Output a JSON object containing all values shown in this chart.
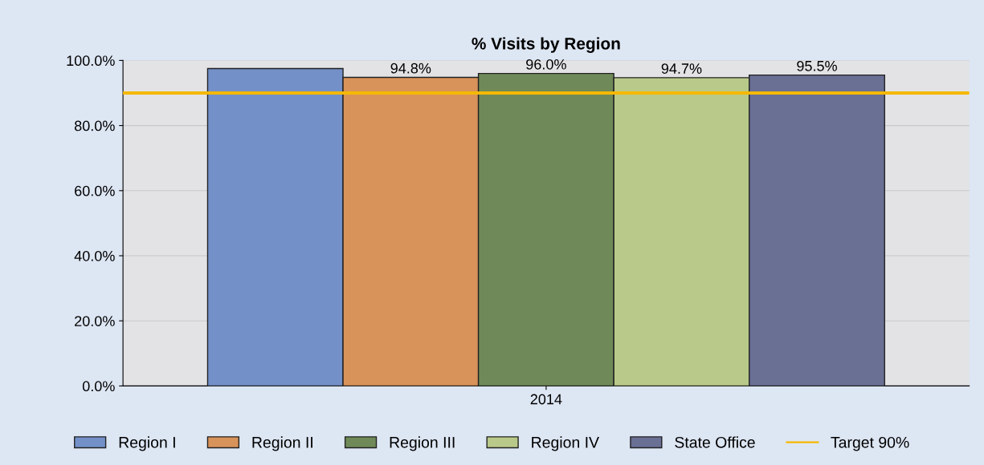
{
  "chart_data": {
    "type": "bar",
    "title": "% Visits by Region",
    "categories": [
      "2014"
    ],
    "series": [
      {
        "name": "Region I",
        "color": "#7390c8",
        "values": [
          97.5
        ],
        "value_labels": [
          null
        ]
      },
      {
        "name": "Region II",
        "color": "#d8935a",
        "values": [
          94.8
        ],
        "value_labels": [
          "94.8%"
        ]
      },
      {
        "name": "Region III",
        "color": "#6f8a58",
        "values": [
          96.0
        ],
        "value_labels": [
          "96.0%"
        ]
      },
      {
        "name": "Region IV",
        "color": "#b9c98a",
        "values": [
          94.7
        ],
        "value_labels": [
          "94.7%"
        ]
      },
      {
        "name": "State Office",
        "color": "#6a6f94",
        "values": [
          95.5
        ],
        "value_labels": [
          "95.5%"
        ]
      }
    ],
    "ref_lines": [
      {
        "axis": "y",
        "value": 90,
        "label": "Target 90%",
        "color": "#f5b800",
        "line_style": "solid"
      }
    ],
    "ylim": [
      0,
      100
    ],
    "yticks": [
      {
        "value": 0,
        "label": "0.0%"
      },
      {
        "value": 20,
        "label": "20.0%"
      },
      {
        "value": 40,
        "label": "40.0%"
      },
      {
        "value": 60,
        "label": "60.0%"
      },
      {
        "value": 80,
        "label": "80.0%"
      },
      {
        "value": 100,
        "label": "100.0%"
      }
    ],
    "grid": "y",
    "legend": "bottom"
  }
}
